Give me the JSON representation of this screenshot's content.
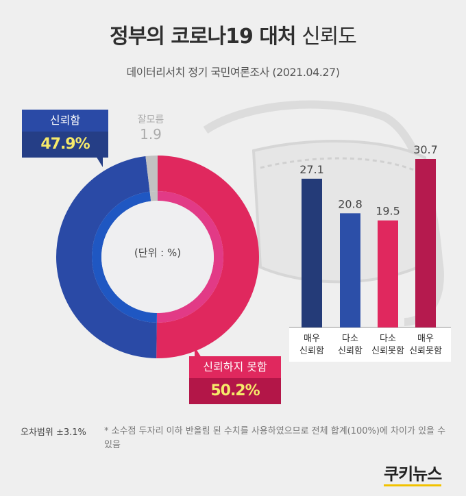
{
  "title_bold": "정부의 코로나19 대처",
  "title_light": "신뢰도",
  "subtitle": "데이터리서치 정기 국민여론조사 (2021.04.27)",
  "unit_label": "(단위 : %)",
  "error_margin": "오차범위 ±3.1%",
  "footnote": "* 소수점 두자리 이하 반올림 된 수치를 사용하였으므로 전체 합계(100%)에 차이가 있을 수 있음",
  "logo": "쿠키뉴스",
  "donut_labels": {
    "trust_label": "신뢰함",
    "trust_value": "47.9%",
    "distrust_label": "신뢰하지 못함",
    "distrust_value": "50.2%",
    "unknown_label": "잘모름",
    "unknown_value": "1.9"
  },
  "colors": {
    "trust": "#2a4aa6",
    "trust_inner": "#1f57c2",
    "distrust": "#e0285e",
    "distrust_inner": "#e23a86",
    "unknown": "#c2c2c2",
    "bar1": "#243b78",
    "bar2": "#2c4fa8",
    "bar3": "#e0285e",
    "bar4": "#b51a4e"
  },
  "chart_data": [
    {
      "type": "pie",
      "categories": [
        "신뢰함",
        "신뢰하지 못함",
        "잘모름"
      ],
      "values": [
        47.9,
        50.2,
        1.9
      ],
      "title": "",
      "unit": "%"
    },
    {
      "type": "bar",
      "categories": [
        [
          "매우",
          "신뢰함"
        ],
        [
          "다소",
          "신뢰함"
        ],
        [
          "다소",
          "신뢰못함"
        ],
        [
          "매우",
          "신뢰못함"
        ]
      ],
      "values": [
        27.1,
        20.8,
        19.5,
        30.7
      ],
      "value_labels": [
        "27.1",
        "20.8",
        "19.5",
        "30.7"
      ],
      "ylim": [
        0,
        35
      ]
    }
  ]
}
